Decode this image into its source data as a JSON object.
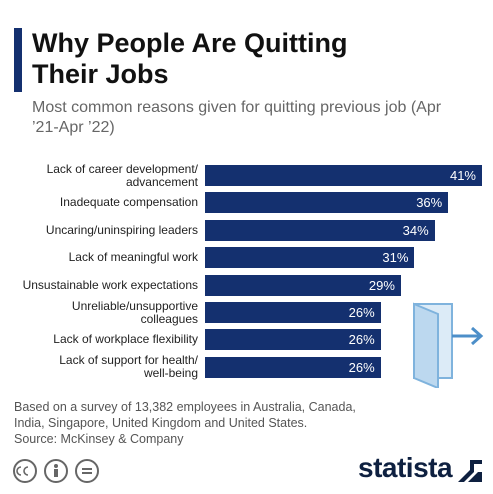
{
  "chart_data": {
    "type": "bar",
    "title": "Why People Are Quitting Their Jobs",
    "subtitle": "Most common reasons given for quitting previous job (Apr ’21-Apr ’22)",
    "categories": [
      "Lack of career development/\nadvancement",
      "Inadequate compensation",
      "Uncaring/uninspiring leaders",
      "Lack of meaningful work",
      "Unsustainable work expectations",
      "Unreliable/unsupportive\ncolleagues",
      "Lack of workplace flexibility",
      "Lack of support for health/\nwell-being"
    ],
    "values": [
      41,
      36,
      34,
      31,
      29,
      26,
      26,
      26
    ],
    "value_labels": [
      "41%",
      "36%",
      "34%",
      "31%",
      "29%",
      "26%",
      "26%",
      "26%"
    ],
    "color": "#14306f",
    "note": "Based on a survey of 13,382 employees in Australia, Canada, India, Singapore, United Kingdom and United States.",
    "source": "Source: McKinsey & Company",
    "brand": "statista"
  }
}
